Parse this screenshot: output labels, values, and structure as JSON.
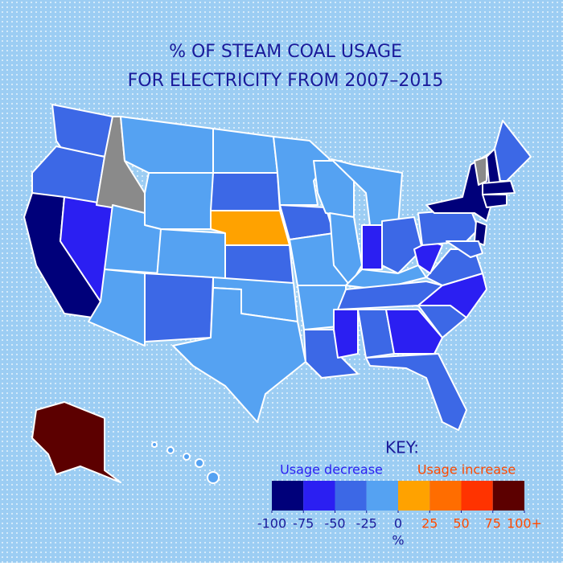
{
  "title_lines": [
    "% OF STEAM COAL USAGE",
    "FOR ELECTRICITY FROM 2007–2015"
  ],
  "key": {
    "title": "KEY:",
    "decrease_label": "Usage decrease",
    "increase_label": "Usage increase",
    "unit": "%",
    "range": [
      -100,
      100
    ],
    "ticks": [
      -100,
      -75,
      -50,
      -25,
      0,
      25,
      50,
      75,
      {
        "value": 100,
        "label": "100+"
      }
    ],
    "bin_colors": [
      "#00007a",
      "#2b1ff2",
      "#3c68e6",
      "#55a2f2",
      "#ffa200",
      "#ff6d00",
      "#ff3300",
      "#5c0000"
    ],
    "no_data_color": "#8a8a8a",
    "decrease_color": "#2b1ff2",
    "increase_color": "#ff4a00"
  }
}
